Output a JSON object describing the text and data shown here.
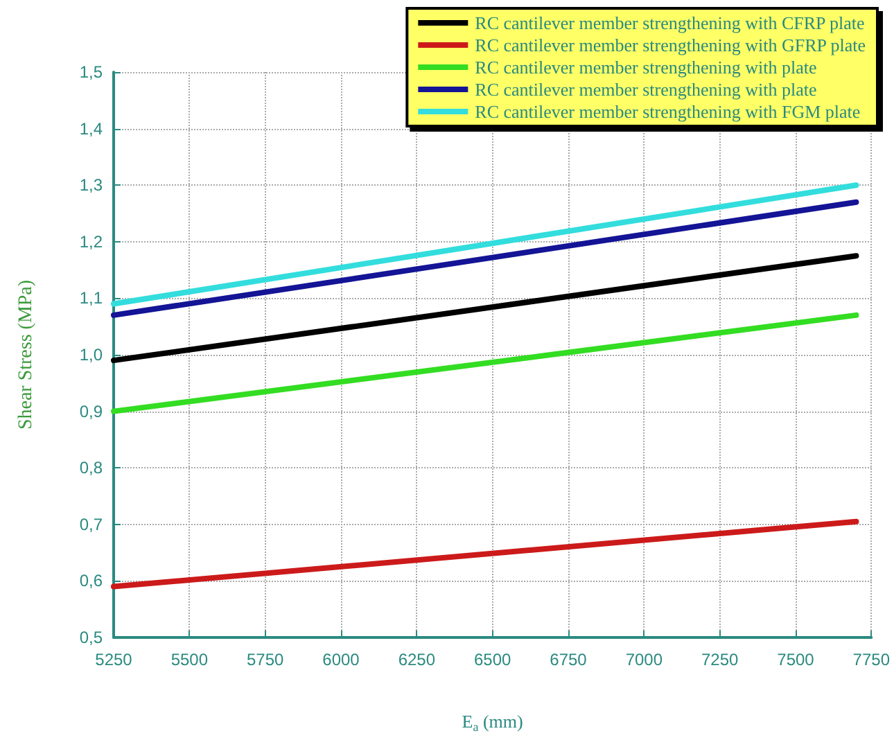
{
  "chart_data": {
    "type": "line",
    "xlabel": "E$_{a}$ (mm)",
    "ylabel": "Shear Stress (MPa)",
    "x": [
      5250,
      7700
    ],
    "series": [
      {
        "name": "RC cantilever member strengthening with CFRP plate",
        "color": "#000000",
        "values": [
          0.99,
          1.175
        ]
      },
      {
        "name": "RC cantilever member strengthening with GFRP plate",
        "color": "#cc1a1a",
        "values": [
          0.59,
          0.705
        ]
      },
      {
        "name": "RC cantilever member strengthening with plate",
        "color": "#33dd22",
        "values": [
          0.9,
          1.07
        ]
      },
      {
        "name": "RC cantilever member strengthening with plate",
        "color": "#141496",
        "values": [
          1.07,
          1.27
        ]
      },
      {
        "name": "RC cantilever member strengthening with FGM plate",
        "color": "#33dddd",
        "values": [
          1.09,
          1.3
        ]
      }
    ],
    "xlim": [
      5250,
      7750
    ],
    "xticks": [
      5250,
      5500,
      5750,
      6000,
      6250,
      6500,
      6750,
      7000,
      7250,
      7500,
      7750
    ],
    "ylim": [
      0.5,
      1.5
    ],
    "yticks": [
      {
        "value": 0.5,
        "label": "0,5"
      },
      {
        "value": 0.6,
        "label": "0,6"
      },
      {
        "value": 0.7,
        "label": "0,7"
      },
      {
        "value": 0.8,
        "label": "0,8"
      },
      {
        "value": 0.9,
        "label": "0,9"
      },
      {
        "value": 1.0,
        "label": "1,0"
      },
      {
        "value": 1.1,
        "label": "1,1"
      },
      {
        "value": 1.2,
        "label": "1,2"
      },
      {
        "value": 1.3,
        "label": "1,3"
      },
      {
        "value": 1.4,
        "label": "1,4"
      },
      {
        "value": 1.5,
        "label": "1,5"
      }
    ],
    "grid": true,
    "legend": "top right",
    "marker": "none",
    "line_style": "solid"
  }
}
